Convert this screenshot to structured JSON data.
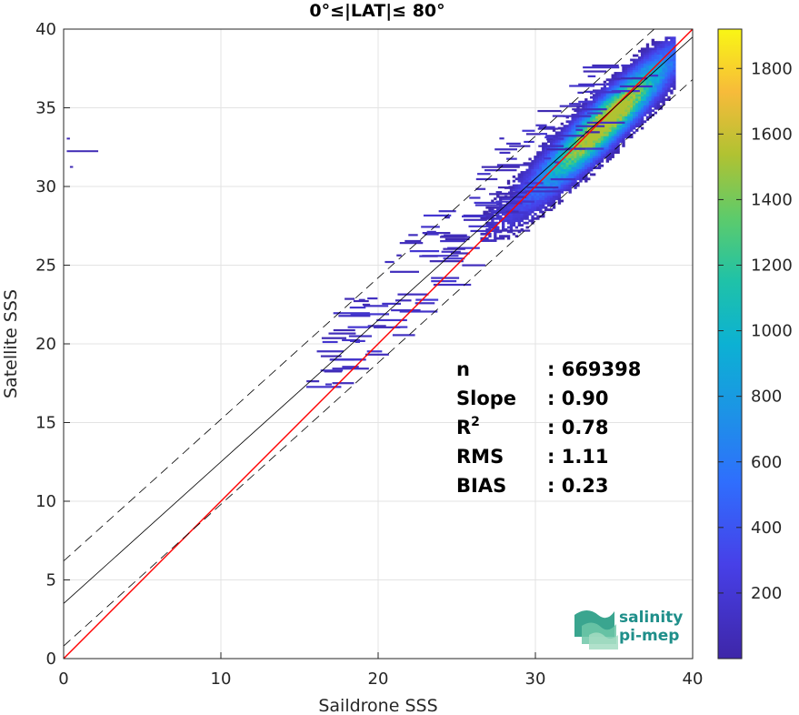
{
  "chart_data": {
    "type": "heatmap",
    "title": "0°≤|LAT|≤ 80°",
    "xlabel": "Saildrone SSS",
    "ylabel": "Satellite SSS",
    "xlim": [
      0,
      40
    ],
    "ylim": [
      0,
      40
    ],
    "xticks": [
      "0",
      "10",
      "20",
      "30",
      "40"
    ],
    "yticks": [
      "0",
      "5",
      "10",
      "15",
      "20",
      "25",
      "30",
      "35",
      "40"
    ],
    "grid": true,
    "colorbar": {
      "min": 0,
      "max": 1920,
      "ticks": [
        "200",
        "400",
        "600",
        "800",
        "1000",
        "1200",
        "1400",
        "1600",
        "1800"
      ],
      "tick_values": [
        200,
        400,
        600,
        800,
        1000,
        1200,
        1400,
        1600,
        1800
      ],
      "colormap": "parula"
    },
    "lines": [
      {
        "name": "identity",
        "slope": 1.0,
        "intercept": 0.0,
        "color": "#ff0000",
        "style": "solid"
      },
      {
        "name": "regression",
        "slope": 0.9,
        "intercept": 3.5,
        "color": "#000000",
        "style": "solid"
      },
      {
        "name": "regression+",
        "slope": 0.9,
        "intercept": 6.2,
        "color": "#000000",
        "style": "dashed"
      },
      {
        "name": "regression-",
        "slope": 0.9,
        "intercept": 0.8,
        "color": "#000000",
        "style": "dashed"
      }
    ],
    "density_core": {
      "x_range": [
        27,
        39
      ],
      "peak": [
        34.5,
        34.2
      ],
      "peak_count": 1900
    },
    "stats": [
      {
        "label": "n",
        "value": ": 669398"
      },
      {
        "label": "Slope",
        "value": ": 0.90"
      },
      {
        "label": "R",
        "sup": "2",
        "value": ": 0.78"
      },
      {
        "label": "RMS",
        "value": ": 1.11"
      },
      {
        "label": "BIAS",
        "value": ": 0.23"
      }
    ]
  },
  "logo": {
    "line1": "salinity",
    "line2": "pi-mep"
  }
}
